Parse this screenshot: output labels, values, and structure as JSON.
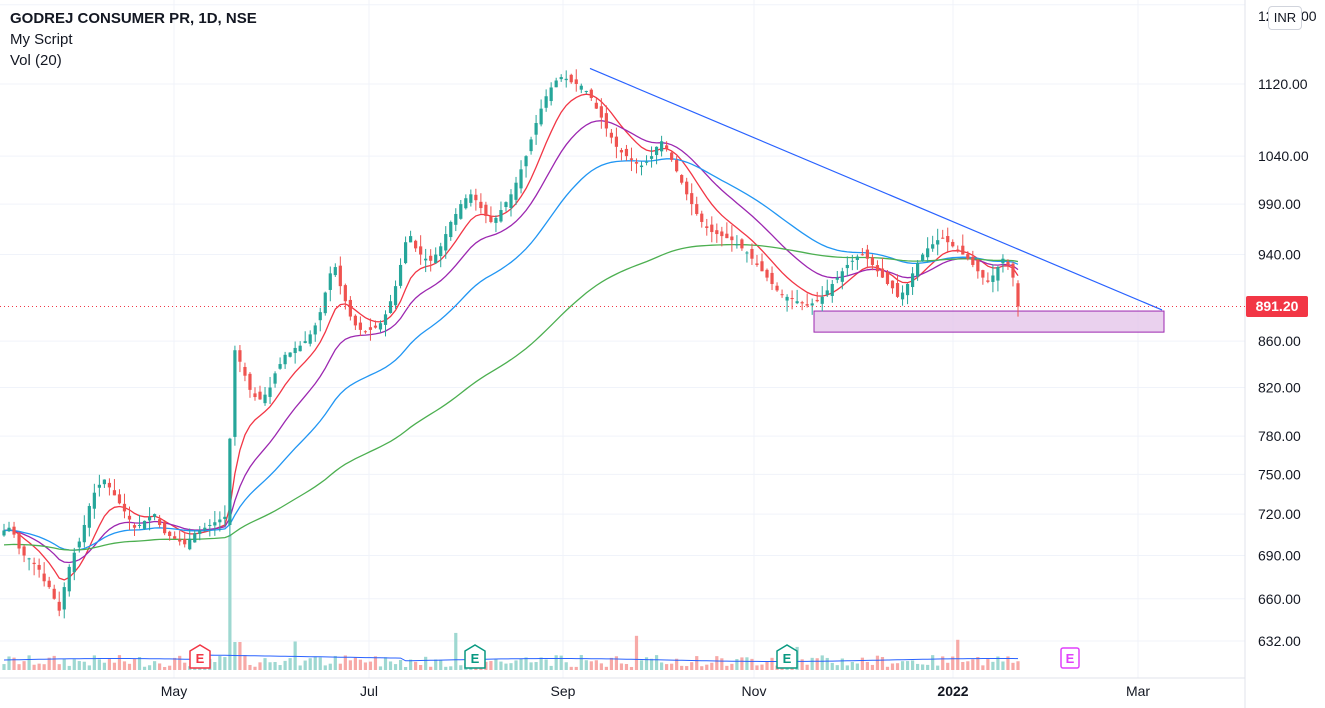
{
  "legend": {
    "title": "GODREJ CONSUMER PR, 1D, NSE",
    "script": "My Script",
    "volume": "Vol (20)"
  },
  "currency_button": "INR",
  "chart_data": {
    "type": "candlestick",
    "symbol": "GODREJ CONSUMER PR",
    "interval": "1D",
    "exchange": "NSE",
    "currency": "INR",
    "last_price": 891.2,
    "y_axis": {
      "scale": "log",
      "ticks": [
        632,
        660,
        690,
        720,
        750,
        780,
        820,
        860,
        940,
        990,
        1040,
        1120
      ]
    },
    "y_tick_labels": [
      "632.00",
      "660.00",
      "690.00",
      "720.00",
      "750.00",
      "780.00",
      "820.00",
      "860.00",
      "940.00",
      "990.00",
      "1040.00",
      "1120.00"
    ],
    "top_clipped_label": "12",
    "top_clipped_label_suffix": "00",
    "x_labels": [
      {
        "label": "May",
        "date": "2021-05",
        "bold": false
      },
      {
        "label": "Jul",
        "date": "2021-07",
        "bold": false
      },
      {
        "label": "Sep",
        "date": "2021-09",
        "bold": false
      },
      {
        "label": "Nov",
        "date": "2021-11",
        "bold": false
      },
      {
        "label": "2022",
        "date": "2022-01",
        "bold": true
      },
      {
        "label": "Mar",
        "date": "2022-03",
        "bold": false
      }
    ],
    "closes": [
      708,
      710,
      705,
      695,
      690,
      688,
      684,
      680,
      672,
      668,
      660,
      652,
      668,
      682,
      692,
      700,
      712,
      726,
      736,
      742,
      746,
      740,
      734,
      728,
      722,
      716,
      710,
      712,
      715,
      718,
      720,
      712,
      706,
      704,
      702,
      700,
      698,
      702,
      706,
      708,
      710,
      712,
      714,
      716,
      718,
      778,
      852,
      842,
      830,
      818,
      812,
      810,
      814,
      820,
      832,
      840,
      848,
      850,
      854,
      856,
      860,
      866,
      874,
      886,
      904,
      922,
      928,
      910,
      896,
      882,
      874,
      870,
      868,
      870,
      872,
      876,
      884,
      896,
      910,
      930,
      952,
      958,
      946,
      940,
      936,
      934,
      940,
      948,
      960,
      972,
      980,
      990,
      996,
      1000,
      994,
      986,
      978,
      972,
      976,
      984,
      992,
      1000,
      1012,
      1026,
      1040,
      1058,
      1076,
      1092,
      1106,
      1116,
      1124,
      1128,
      1126,
      1122,
      1120,
      1118,
      1112,
      1104,
      1092,
      1082,
      1070,
      1060,
      1050,
      1044,
      1040,
      1036,
      1032,
      1030,
      1034,
      1040,
      1050,
      1056,
      1048,
      1036,
      1024,
      1012,
      1000,
      990,
      980,
      972,
      966,
      962,
      960,
      958,
      956,
      954,
      950,
      946,
      942,
      936,
      930,
      924,
      918,
      912,
      906,
      902,
      900,
      898,
      896,
      894,
      892,
      894,
      896,
      900,
      906,
      912,
      918,
      924,
      930,
      934,
      938,
      940,
      936,
      930,
      924,
      918,
      912,
      908,
      900,
      904,
      912,
      922,
      932,
      940,
      946,
      950,
      954,
      956,
      952,
      948,
      944,
      940,
      936,
      930,
      924,
      918,
      914,
      920,
      928,
      936,
      930,
      918,
      891.2
    ],
    "moving_averages": [
      {
        "color": "#f23645",
        "period": "short"
      },
      {
        "color": "#9c27b0",
        "period": "medium"
      },
      {
        "color": "#2196f3",
        "period": "long"
      },
      {
        "color": "#4caf50",
        "period": "very_long"
      }
    ],
    "trendline": {
      "color": "#2962ff",
      "from": {
        "date": "2021-09-06",
        "price": 1138
      },
      "to": {
        "date": "2022-03-01",
        "price": 888
      }
    },
    "support_zone": {
      "color": "#e1bee7",
      "from_date": "2021-11-22",
      "to_date": "2022-03-02",
      "top": 887,
      "bottom": 868
    },
    "earnings_markers": [
      {
        "label": "E",
        "type": "negative",
        "date": "2021-05"
      },
      {
        "label": "E",
        "type": "positive",
        "date": "2021-08"
      },
      {
        "label": "E",
        "type": "positive",
        "date": "2021-11"
      },
      {
        "label": "E",
        "type": "upcoming",
        "date": "2022-02"
      }
    ]
  }
}
